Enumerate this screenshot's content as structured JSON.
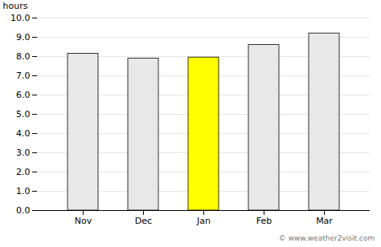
{
  "chart_data": {
    "type": "bar",
    "categories": [
      "Nov",
      "Dec",
      "Jan",
      "Feb",
      "Mar"
    ],
    "values": [
      8.15,
      7.9,
      7.95,
      8.6,
      9.2
    ],
    "colors": [
      "#e8e8e8",
      "#e8e8e8",
      "#ffff00",
      "#e8e8e8",
      "#e8e8e8"
    ],
    "ylabel": "hours",
    "ylim": [
      0,
      10.0
    ],
    "yticks": [
      {
        "value": 0,
        "label": "0.0"
      },
      {
        "value": 1,
        "label": "1.0"
      },
      {
        "value": 2,
        "label": "2.0"
      },
      {
        "value": 3,
        "label": "3.0"
      },
      {
        "value": 4,
        "label": "4.0"
      },
      {
        "value": 5,
        "label": "5.0"
      },
      {
        "value": 6,
        "label": "6.0"
      },
      {
        "value": 7,
        "label": "7.0"
      },
      {
        "value": 8,
        "label": "8.0"
      },
      {
        "value": 9,
        "label": "9.0"
      },
      {
        "value": 10,
        "label": "10.0"
      }
    ],
    "grid": true,
    "annotations": [
      "© www.weather2visit.com"
    ]
  }
}
